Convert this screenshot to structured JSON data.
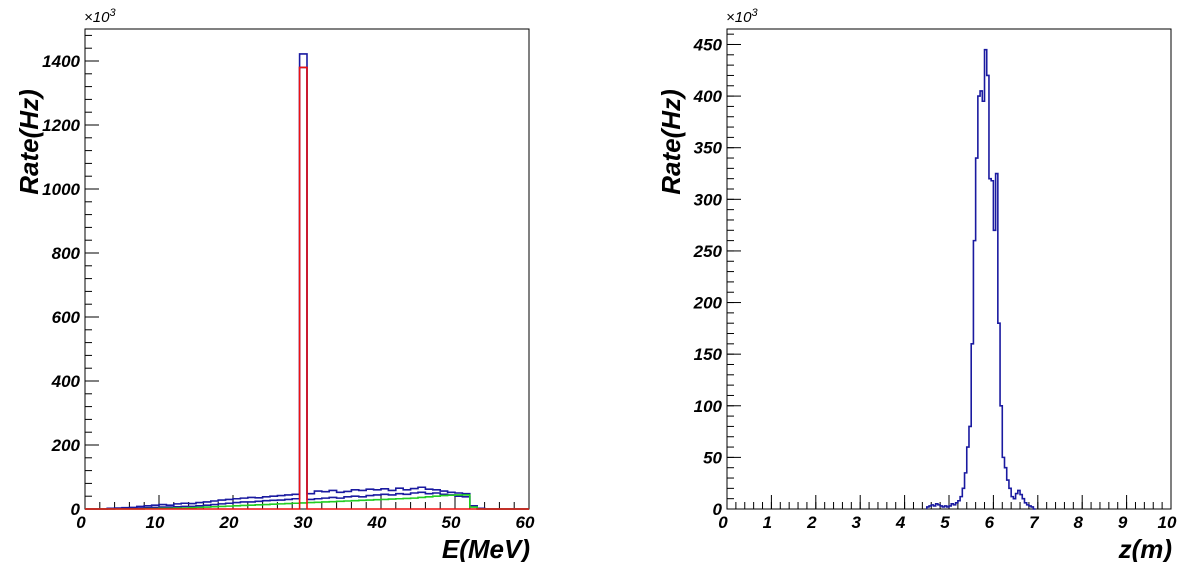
{
  "chart_data": [
    {
      "type": "line",
      "xlabel": "E(MeV)",
      "ylabel": "Rate(Hz)",
      "y_multiplier": "×10",
      "y_multiplier_exp": "3",
      "xlim": [
        0,
        60
      ],
      "ylim": [
        0,
        1500
      ],
      "x_ticks": [
        0,
        10,
        20,
        30,
        40,
        50,
        60
      ],
      "y_ticks": [
        0,
        200,
        400,
        600,
        800,
        1000,
        1200,
        1400
      ],
      "grid": false,
      "bin_width": 1,
      "series": [
        {
          "color": "#1a1aa0",
          "x": [
            0,
            1,
            2,
            3,
            4,
            5,
            6,
            7,
            8,
            9,
            10,
            11,
            12,
            13,
            14,
            15,
            16,
            17,
            18,
            19,
            20,
            21,
            22,
            23,
            24,
            25,
            26,
            27,
            28,
            29,
            30,
            31,
            32,
            33,
            34,
            35,
            36,
            37,
            38,
            39,
            40,
            41,
            42,
            43,
            44,
            45,
            46,
            47,
            48,
            49,
            50,
            51,
            52,
            53,
            54,
            55,
            56,
            57,
            58,
            59
          ],
          "values": [
            0,
            0,
            0,
            2,
            3,
            4,
            5,
            8,
            10,
            12,
            14,
            12,
            16,
            18,
            17,
            20,
            22,
            25,
            28,
            30,
            32,
            34,
            36,
            35,
            38,
            40,
            42,
            44,
            46,
            1422,
            48,
            56,
            54,
            58,
            52,
            55,
            60,
            58,
            62,
            60,
            63,
            58,
            65,
            60,
            64,
            68,
            62,
            60,
            56,
            52,
            50,
            48,
            10,
            2,
            0,
            0,
            0,
            0,
            0,
            0
          ]
        },
        {
          "color": "#1a1aa0",
          "x": [
            0,
            1,
            2,
            3,
            4,
            5,
            6,
            7,
            8,
            9,
            10,
            11,
            12,
            13,
            14,
            15,
            16,
            17,
            18,
            19,
            20,
            21,
            22,
            23,
            24,
            25,
            26,
            27,
            28,
            29,
            30,
            31,
            32,
            33,
            34,
            35,
            36,
            37,
            38,
            39,
            40,
            41,
            42,
            43,
            44,
            45,
            46,
            47,
            48,
            49,
            50,
            51,
            52,
            53,
            54,
            55,
            56,
            57,
            58,
            59
          ],
          "values": [
            0,
            0,
            0,
            0,
            1,
            2,
            2,
            3,
            4,
            5,
            6,
            6,
            7,
            8,
            8,
            10,
            12,
            14,
            16,
            18,
            20,
            22,
            22,
            24,
            26,
            27,
            28,
            30,
            32,
            1380,
            30,
            32,
            34,
            36,
            34,
            38,
            40,
            38,
            42,
            44,
            46,
            44,
            48,
            46,
            50,
            52,
            48,
            50,
            46,
            44,
            40,
            38,
            8,
            0,
            0,
            0,
            0,
            0,
            0,
            0
          ]
        },
        {
          "color": "#22cc22",
          "x": [
            0,
            1,
            2,
            3,
            4,
            5,
            6,
            7,
            8,
            9,
            10,
            11,
            12,
            13,
            14,
            15,
            16,
            17,
            18,
            19,
            20,
            21,
            22,
            23,
            24,
            25,
            26,
            27,
            28,
            29,
            30,
            31,
            32,
            33,
            34,
            35,
            36,
            37,
            38,
            39,
            40,
            41,
            42,
            43,
            44,
            45,
            46,
            47,
            48,
            49,
            50,
            51,
            52,
            53,
            54,
            55,
            56,
            57,
            58,
            59
          ],
          "values": [
            0,
            0,
            0,
            0,
            0,
            0,
            0,
            0,
            1,
            1,
            2,
            2,
            3,
            3,
            4,
            5,
            6,
            7,
            8,
            9,
            10,
            11,
            12,
            13,
            14,
            15,
            16,
            17,
            18,
            19,
            20,
            21,
            22,
            23,
            24,
            25,
            26,
            27,
            28,
            29,
            30,
            31,
            32,
            33,
            34,
            36,
            38,
            40,
            42,
            43,
            44,
            44,
            6,
            0,
            0,
            0,
            0,
            0,
            0,
            0
          ]
        },
        {
          "color": "#ee1111",
          "x": [
            0,
            1,
            2,
            3,
            4,
            5,
            6,
            7,
            8,
            9,
            10,
            11,
            12,
            13,
            14,
            15,
            16,
            17,
            18,
            19,
            20,
            21,
            22,
            23,
            24,
            25,
            26,
            27,
            28,
            29,
            30,
            31,
            32,
            33,
            34,
            35,
            36,
            37,
            38,
            39,
            40,
            41,
            42,
            43,
            44,
            45,
            46,
            47,
            48,
            49,
            50,
            51,
            52,
            53,
            54,
            55,
            56,
            57,
            58,
            59
          ],
          "values": [
            0,
            0,
            0,
            0,
            0,
            0,
            0,
            0,
            0,
            0,
            0,
            0,
            0,
            0,
            0,
            0,
            0,
            0,
            0,
            0,
            0,
            0,
            0,
            0,
            0,
            0,
            0,
            0,
            0,
            1380,
            0,
            0,
            0,
            0,
            0,
            0,
            0,
            0,
            0,
            0,
            0,
            0,
            0,
            0,
            0,
            0,
            0,
            0,
            0,
            0,
            0,
            0,
            0,
            0,
            0,
            0,
            0,
            0,
            0,
            0
          ]
        }
      ]
    },
    {
      "type": "line",
      "xlabel": "z(m)",
      "ylabel": "Rate(Hz)",
      "y_multiplier": "×10",
      "y_multiplier_exp": "3",
      "xlim": [
        0,
        10
      ],
      "ylim": [
        0,
        465
      ],
      "x_ticks": [
        0,
        1,
        2,
        3,
        4,
        5,
        6,
        7,
        8,
        9,
        10
      ],
      "y_ticks": [
        0,
        50,
        100,
        150,
        200,
        250,
        300,
        350,
        400,
        450
      ],
      "grid": false,
      "bin_width": 0.05,
      "series": [
        {
          "color": "#1a1aa0",
          "x": [
            4.5,
            4.55,
            4.6,
            4.65,
            4.7,
            4.75,
            4.8,
            4.85,
            4.9,
            4.95,
            5.0,
            5.05,
            5.1,
            5.15,
            5.2,
            5.25,
            5.3,
            5.35,
            5.4,
            5.45,
            5.5,
            5.55,
            5.6,
            5.65,
            5.7,
            5.75,
            5.8,
            5.85,
            5.9,
            5.95,
            6.0,
            6.05,
            6.1,
            6.15,
            6.2,
            6.25,
            6.3,
            6.35,
            6.4,
            6.45,
            6.5,
            6.55,
            6.6,
            6.65,
            6.7,
            6.75,
            6.8,
            6.85,
            6.9
          ],
          "values": [
            2,
            3,
            4,
            3,
            5,
            4,
            3,
            2,
            3,
            2,
            3,
            5,
            4,
            6,
            8,
            12,
            20,
            35,
            60,
            80,
            160,
            260,
            340,
            400,
            405,
            395,
            445,
            420,
            320,
            318,
            270,
            325,
            180,
            100,
            50,
            40,
            28,
            20,
            12,
            10,
            15,
            18,
            14,
            10,
            6,
            4,
            3,
            2,
            0
          ]
        }
      ]
    }
  ]
}
